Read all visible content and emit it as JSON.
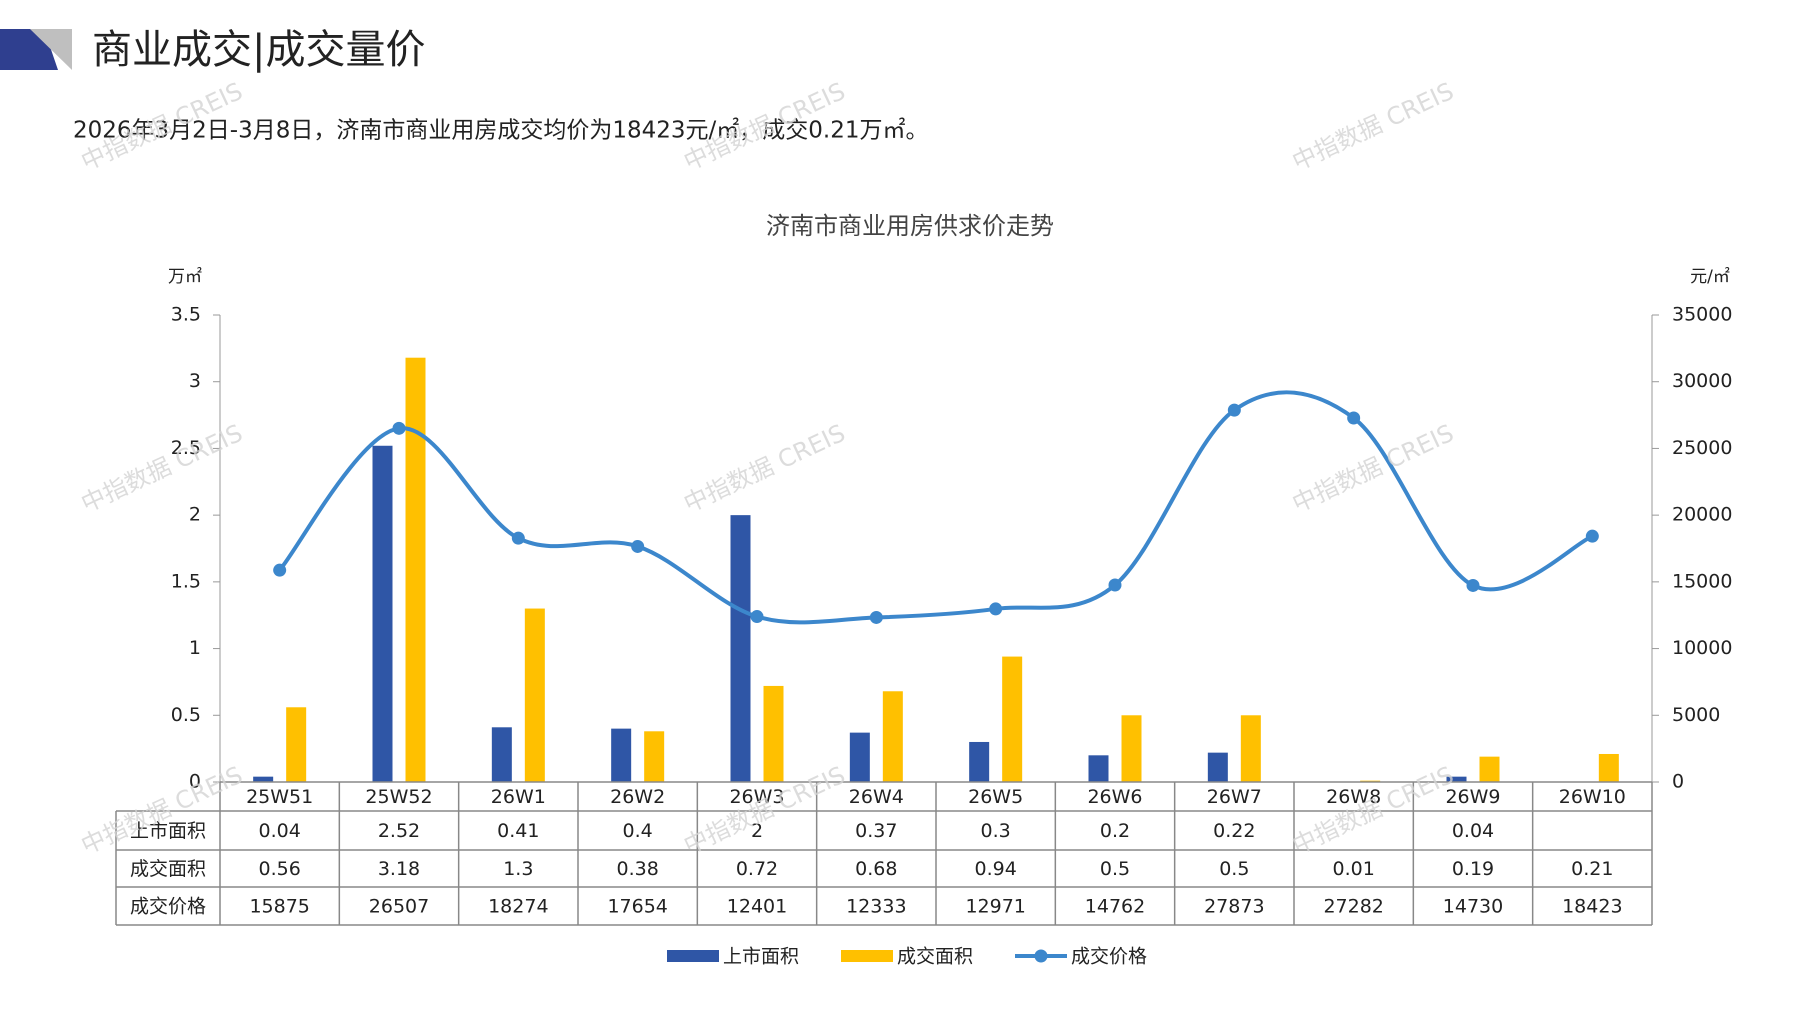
{
  "header": {
    "title": "商业成交|成交量价",
    "summary": "2026年3月2日-3月8日，济南市商业用房成交均价为18423元/㎡，成交0.21万㎡。"
  },
  "watermark": "中指数据 CREIS",
  "chart_data": {
    "type": "bar",
    "title": "济南市商业用房供求价走势",
    "y_label": "万㎡",
    "y2_label": "元/㎡",
    "categories": [
      "25W51",
      "25W52",
      "26W1",
      "26W2",
      "26W3",
      "26W4",
      "26W5",
      "26W6",
      "26W7",
      "26W8",
      "26W9",
      "26W10"
    ],
    "series": [
      {
        "name": "上市面积",
        "type": "bar",
        "color": "#2f56a6",
        "values": [
          0.04,
          2.52,
          0.41,
          0.4,
          2,
          0.37,
          0.3,
          0.2,
          0.22,
          null,
          0.04,
          null
        ]
      },
      {
        "name": "成交面积",
        "type": "bar",
        "color": "#ffc000",
        "values": [
          0.56,
          3.18,
          1.3,
          0.38,
          0.72,
          0.68,
          0.94,
          0.5,
          0.5,
          0.01,
          0.19,
          0.21
        ]
      },
      {
        "name": "成交价格",
        "type": "line",
        "axis": "y2",
        "color": "#3c87cc",
        "values": [
          15875,
          26507,
          18274,
          17654,
          12401,
          12333,
          12971,
          14762,
          27873,
          27282,
          14730,
          18423
        ]
      }
    ],
    "ylim": [
      0,
      3.5
    ],
    "yticks": [
      0,
      0.5,
      1,
      1.5,
      2,
      2.5,
      3,
      3.5
    ],
    "y2lim": [
      0,
      35000
    ],
    "y2ticks": [
      0,
      5000,
      10000,
      15000,
      20000,
      25000,
      30000,
      35000
    ],
    "grid": false,
    "legend": "bottom",
    "data_table": true
  }
}
